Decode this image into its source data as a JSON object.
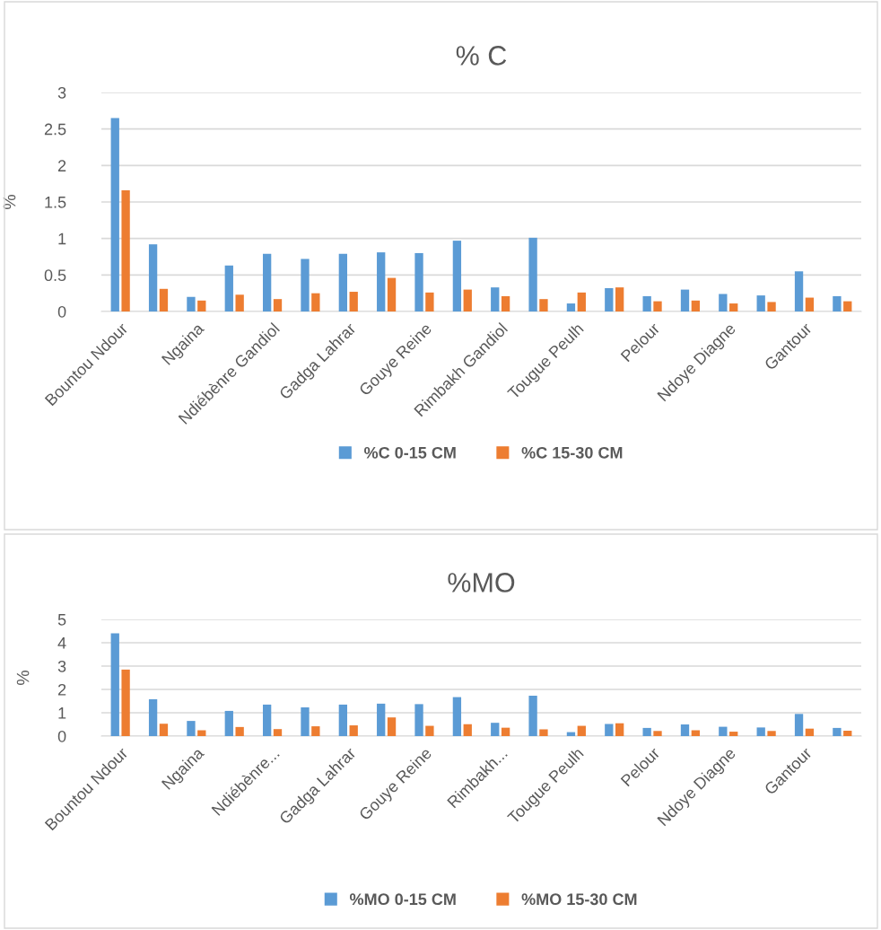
{
  "chart_data": [
    {
      "type": "bar",
      "title": "% C",
      "ylabel": "%",
      "categories": [
        "Bountou Ndour",
        null,
        "Ngaina",
        null,
        "Ndiébènre Gandiol",
        null,
        "Gadga Lahrar",
        null,
        "Gouye Reine",
        null,
        "Rimbakh Gandiol",
        null,
        "Tougue Peulh",
        null,
        "Pelour",
        null,
        "Ndoye Diagne",
        null,
        "Gantour",
        null
      ],
      "series": [
        {
          "name": "%C 0-15 CM",
          "color": "#5b9bd5",
          "values": [
            2.65,
            0.92,
            0.2,
            0.63,
            0.79,
            0.72,
            0.79,
            0.81,
            0.8,
            0.97,
            0.33,
            1.01,
            0.11,
            0.32,
            0.21,
            0.3,
            0.24,
            0.22,
            0.55,
            0.21
          ]
        },
        {
          "name": "%C 15-30 CM",
          "color": "#ed7d31",
          "values": [
            1.66,
            0.31,
            0.15,
            0.23,
            0.17,
            0.25,
            0.27,
            0.46,
            0.26,
            0.3,
            0.21,
            0.17,
            0.26,
            0.33,
            0.14,
            0.15,
            0.11,
            0.13,
            0.19,
            0.14
          ]
        }
      ],
      "ylim": [
        0,
        3
      ],
      "yticks": [
        0,
        {
          "value": 0.5,
          "label": "0.5"
        },
        1,
        {
          "value": 1.5,
          "label": "1.5"
        },
        2,
        {
          "value": 2.5,
          "label": "2.5"
        },
        3
      ],
      "grid": "y",
      "legend": "bottom"
    },
    {
      "type": "bar",
      "title": "%MO",
      "ylabel": "%",
      "categories": [
        "Bountou Ndour",
        null,
        "Ngaina",
        null,
        "Ndiébènre...",
        null,
        "Gadga Lahrar",
        null,
        "Gouye Reine",
        null,
        "Rimbakh...",
        null,
        "Tougue Peulh",
        null,
        "Pelour",
        null,
        "Ndoye Diagne",
        null,
        "Gantour",
        null
      ],
      "series": [
        {
          "name": "%MO 0-15 CM",
          "color": "#5b9bd5",
          "values": [
            4.4,
            1.58,
            0.65,
            1.08,
            1.35,
            1.23,
            1.35,
            1.39,
            1.37,
            1.67,
            0.57,
            1.73,
            0.17,
            0.52,
            0.35,
            0.5,
            0.4,
            0.37,
            0.95,
            0.35
          ]
        },
        {
          "name": "%MO 15-30 CM",
          "color": "#ed7d31",
          "values": [
            2.85,
            0.53,
            0.25,
            0.39,
            0.3,
            0.42,
            0.46,
            0.8,
            0.44,
            0.51,
            0.36,
            0.29,
            0.44,
            0.55,
            0.22,
            0.25,
            0.19,
            0.22,
            0.32,
            0.23
          ]
        }
      ],
      "ylim": [
        0,
        5
      ],
      "yticks": [
        0,
        1,
        2,
        3,
        4,
        5
      ],
      "grid": "y",
      "legend": "bottom"
    }
  ]
}
